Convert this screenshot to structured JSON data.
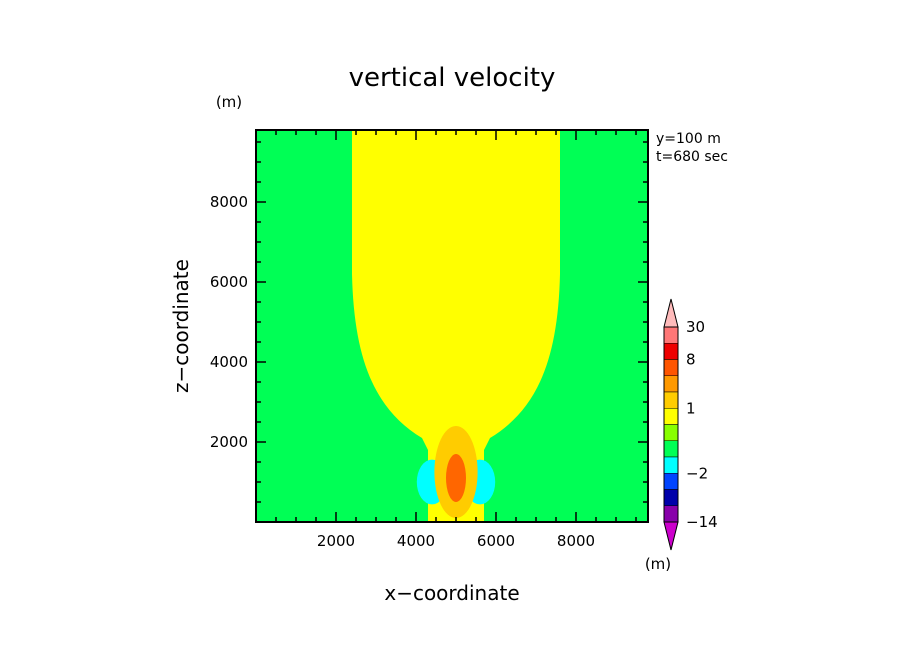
{
  "chart_data": {
    "type": "heatmap",
    "title": "vertical velocity",
    "units_label": "(m)",
    "xlabel": "x−coordinate",
    "ylabel": "z−coordinate",
    "xlim": [
      0,
      9800
    ],
    "ylim": [
      0,
      9800
    ],
    "x_ticks": [
      2000,
      4000,
      6000,
      8000
    ],
    "y_ticks": [
      2000,
      4000,
      6000,
      8000
    ],
    "info": [
      "y=100 m",
      "t=680 sec"
    ],
    "colorbar": {
      "unit_label": "(m)",
      "tick_labels": [
        {
          "text": "30",
          "value": 30
        },
        {
          "text": "8",
          "value": 8
        },
        {
          "text": "1",
          "value": 1
        },
        {
          "text": "−2",
          "value": -2
        },
        {
          "text": "−14",
          "value": -14
        }
      ],
      "levels": [
        {
          "lo": -30,
          "hi": -14,
          "color": "#cc00cc"
        },
        {
          "lo": -14,
          "hi": -8,
          "color": "#8800aa"
        },
        {
          "lo": -8,
          "hi": -4,
          "color": "#0000aa"
        },
        {
          "lo": -4,
          "hi": -2,
          "color": "#0044ff"
        },
        {
          "lo": -2,
          "hi": -1,
          "color": "#00ffff"
        },
        {
          "lo": -1,
          "hi": 0,
          "color": "#00ff55"
        },
        {
          "lo": 0,
          "hi": 0.5,
          "color": "#88ff00"
        },
        {
          "lo": 0.5,
          "hi": 1,
          "color": "#ffff00"
        },
        {
          "lo": 1,
          "hi": 2,
          "color": "#ffcc00"
        },
        {
          "lo": 2,
          "hi": 4,
          "color": "#ff9900"
        },
        {
          "lo": 4,
          "hi": 8,
          "color": "#ff5500"
        },
        {
          "lo": 8,
          "hi": 16,
          "color": "#ee0000"
        },
        {
          "lo": 16,
          "hi": 30,
          "color": "#ff7777"
        },
        {
          "lo": 30,
          "hi": 40,
          "color": "#ffbbbb"
        }
      ]
    },
    "field_colors": {
      "background": "#00ff55",
      "plume": "#ffff00",
      "updraft_outer": "#ffcc00",
      "updraft_core": "#ff6600",
      "downdraft": "#00ffff"
    }
  }
}
